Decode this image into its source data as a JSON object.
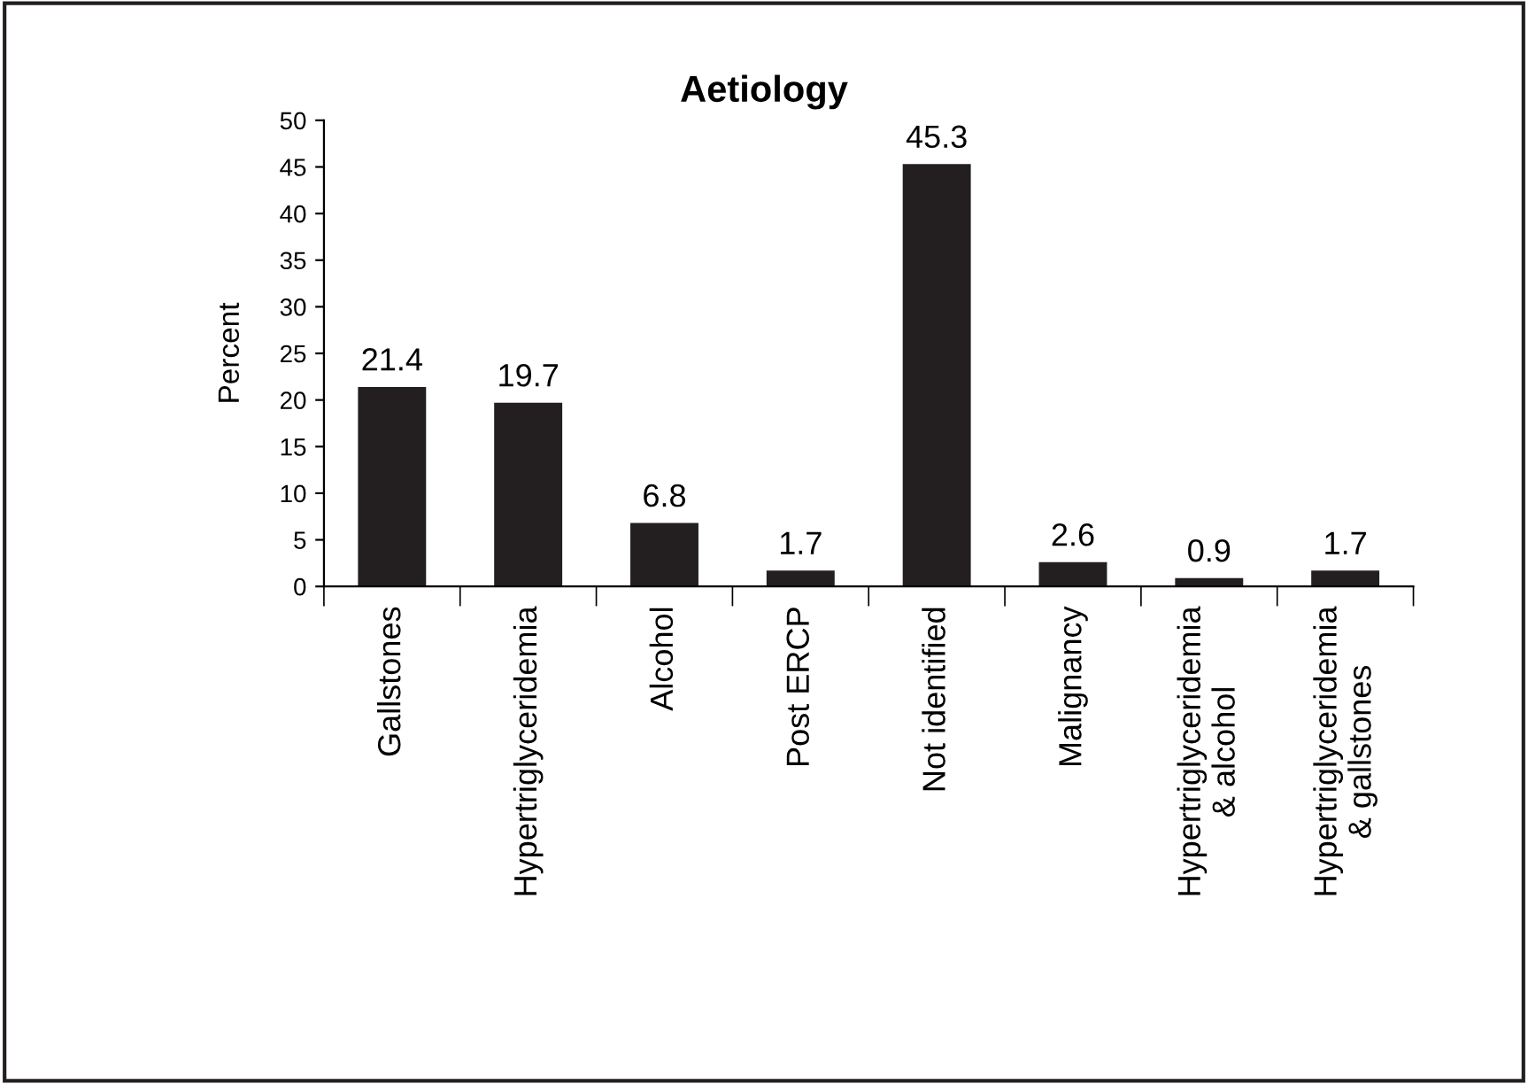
{
  "chart_data": {
    "type": "bar",
    "title": "Aetiology",
    "ylabel": "Percent",
    "categories": [
      "Gallstones",
      "Hypertriglyceridemia",
      "Alcohol",
      "Post ERCP",
      "Not identified",
      "Malignancy",
      "Hypertriglyceridemia\n& alcohol",
      "Hypertriglyceridemia\n& gallstones"
    ],
    "values": [
      21.4,
      19.7,
      6.8,
      1.7,
      45.3,
      2.6,
      0.9,
      1.7
    ],
    "color": "#231f20",
    "ylim": [
      0,
      50
    ],
    "yticks": [
      0,
      5,
      10,
      15,
      20,
      25,
      30,
      35,
      40,
      45,
      50
    ],
    "grid": false,
    "data_labels": true
  }
}
